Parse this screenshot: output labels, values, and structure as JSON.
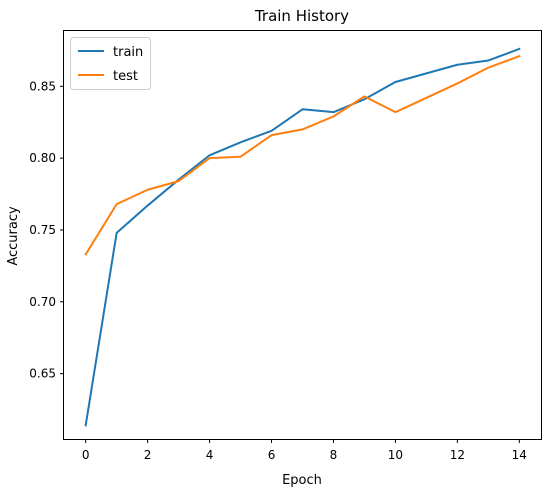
{
  "chart_data": {
    "type": "line",
    "title": "Train History",
    "xlabel": "Epoch",
    "ylabel": "Accuracy",
    "x": [
      0,
      1,
      2,
      3,
      4,
      5,
      6,
      7,
      8,
      9,
      10,
      11,
      12,
      13,
      14
    ],
    "xlim": [
      -0.7,
      14.7
    ],
    "ylim": [
      0.6045,
      0.8885
    ],
    "xticks": [
      0,
      2,
      4,
      6,
      8,
      10,
      12,
      14
    ],
    "yticks": [
      0.65,
      0.7,
      0.75,
      0.8,
      0.85
    ],
    "xtick_labels": [
      "0",
      "2",
      "4",
      "6",
      "8",
      "10",
      "12",
      "14"
    ],
    "ytick_labels": [
      "0.65",
      "0.70",
      "0.75",
      "0.80",
      "0.85"
    ],
    "grid": false,
    "legend_position": "top-left",
    "series": [
      {
        "name": "train",
        "color": "#1f77b4",
        "values": [
          0.614,
          0.748,
          0.767,
          0.785,
          0.802,
          0.811,
          0.819,
          0.834,
          0.832,
          0.841,
          0.853,
          0.859,
          0.865,
          0.868,
          0.876
        ]
      },
      {
        "name": "test",
        "color": "#ff7f0e",
        "values": [
          0.733,
          0.768,
          0.778,
          0.784,
          0.8,
          0.801,
          0.816,
          0.82,
          0.829,
          0.843,
          0.832,
          0.842,
          0.852,
          0.863,
          0.871
        ]
      }
    ]
  }
}
